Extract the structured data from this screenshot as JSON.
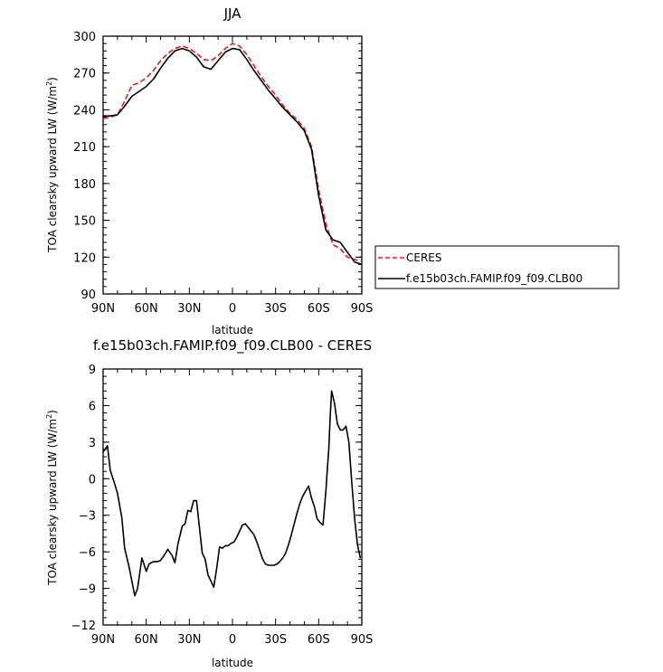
{
  "chart_data": [
    {
      "type": "line",
      "title": "JJA",
      "xlabel": "latitude",
      "ylabel_main": "TOA clearsky upward LW (W/m",
      "ylabel_sup": "2",
      "ylabel_close": ")",
      "xlim": [
        90,
        -90
      ],
      "ylim": [
        90,
        300
      ],
      "x_ticks": [
        90,
        60,
        30,
        0,
        -30,
        -60,
        -90
      ],
      "x_tick_labels": [
        "90N",
        "60N",
        "30N",
        "0",
        "30S",
        "60S",
        "90S"
      ],
      "y_ticks": [
        90,
        120,
        150,
        180,
        210,
        240,
        270,
        300
      ],
      "y_tick_labels": [
        "90",
        "120",
        "150",
        "180",
        "210",
        "240",
        "270",
        "300"
      ],
      "legend": "right, outside plot",
      "series": [
        {
          "name": "CERES",
          "color": "#e31a1c",
          "dash": "dashed",
          "x": [
            90,
            85,
            80,
            75,
            70,
            65,
            60,
            55,
            50,
            45,
            40,
            35,
            30,
            25,
            20,
            15,
            10,
            5,
            0,
            -5,
            -10,
            -15,
            -20,
            -25,
            -30,
            -35,
            -40,
            -45,
            -50,
            -55,
            -60,
            -65,
            -70,
            -75,
            -80,
            -85,
            -90
          ],
          "y": [
            233,
            234,
            236,
            247,
            260,
            262,
            266,
            272,
            280,
            286,
            290,
            292,
            290,
            286,
            281,
            280,
            284,
            290,
            294,
            292,
            285,
            276,
            267,
            259,
            252,
            244,
            237,
            232,
            225,
            210,
            175,
            147,
            130,
            127,
            120,
            118,
            117
          ]
        },
        {
          "name": "f.e15b03ch.FAMIP.f09_f09.CLB00",
          "color": "#000000",
          "dash": "solid",
          "x": [
            90,
            85,
            80,
            75,
            70,
            65,
            60,
            55,
            50,
            45,
            40,
            35,
            30,
            25,
            20,
            15,
            10,
            5,
            0,
            -5,
            -10,
            -15,
            -20,
            -25,
            -30,
            -35,
            -40,
            -45,
            -50,
            -55,
            -60,
            -65,
            -70,
            -75,
            -80,
            -85,
            -90
          ],
          "y": [
            235,
            235,
            236,
            243,
            251,
            255,
            259,
            265,
            274,
            282,
            288,
            290,
            288,
            283,
            275,
            273,
            280,
            287,
            290,
            289,
            281,
            272,
            264,
            256,
            249,
            242,
            236,
            230,
            223,
            208,
            170,
            142,
            134,
            132,
            124,
            116,
            114
          ]
        }
      ]
    },
    {
      "type": "line",
      "title": "f.e15b03ch.FAMIP.f09_f09.CLB00 - CERES",
      "xlabel": "latitude",
      "ylabel_main": "TOA clearsky upward LW (W/m",
      "ylabel_sup": "2",
      "ylabel_close": ")",
      "xlim": [
        90,
        -90
      ],
      "ylim": [
        -12,
        9
      ],
      "x_ticks": [
        90,
        60,
        30,
        0,
        -30,
        -60,
        -90
      ],
      "x_tick_labels": [
        "90N",
        "60N",
        "30N",
        "0",
        "30S",
        "60S",
        "90S"
      ],
      "y_ticks": [
        -12,
        -9,
        -6,
        -3,
        0,
        3,
        6,
        9
      ],
      "y_tick_labels": [
        "−12",
        "−9",
        "−6",
        "−3",
        "0",
        "3",
        "6",
        "9"
      ],
      "series": [
        {
          "name": "difference",
          "color": "#000000",
          "dash": "solid",
          "x": [
            90,
            87,
            85,
            82,
            80,
            77,
            75,
            72,
            70,
            68,
            66,
            63,
            60,
            58,
            55,
            52,
            50,
            47,
            45,
            42,
            40,
            38,
            35,
            33,
            31,
            29,
            27,
            25,
            23,
            21,
            19,
            17,
            15,
            13,
            11,
            9,
            7,
            5,
            3,
            1,
            -1,
            -3,
            -5,
            -7,
            -9,
            -11,
            -13,
            -15,
            -17,
            -19,
            -21,
            -23,
            -25,
            -27,
            -29,
            -31,
            -33,
            -35,
            -37,
            -39,
            -41,
            -43,
            -45,
            -47,
            -49,
            -51,
            -53,
            -55,
            -57,
            -59,
            -61,
            -63,
            -65,
            -66,
            -67,
            -68,
            -69,
            -71,
            -73,
            -75,
            -77,
            -79,
            -81,
            -83,
            -85,
            -87,
            -89
          ],
          "y": [
            2.2,
            2.7,
            0.7,
            -0.4,
            -1.2,
            -3.2,
            -5.7,
            -7.2,
            -8.4,
            -9.6,
            -9.0,
            -6.5,
            -7.6,
            -7.0,
            -6.8,
            -6.8,
            -6.7,
            -6.2,
            -5.8,
            -6.3,
            -6.9,
            -5.4,
            -3.9,
            -3.7,
            -2.6,
            -2.7,
            -1.8,
            -1.8,
            -4.0,
            -6.1,
            -6.6,
            -7.9,
            -8.4,
            -8.9,
            -7.4,
            -5.6,
            -5.7,
            -5.5,
            -5.5,
            -5.3,
            -5.2,
            -4.8,
            -4.3,
            -3.8,
            -3.7,
            -4.0,
            -4.3,
            -4.6,
            -5.2,
            -5.9,
            -6.6,
            -7.0,
            -7.1,
            -7.1,
            -7.1,
            -7.0,
            -6.8,
            -6.5,
            -6.1,
            -5.4,
            -4.6,
            -3.7,
            -2.8,
            -2.0,
            -1.4,
            -1.0,
            -0.6,
            -1.6,
            -2.3,
            -3.3,
            -3.6,
            -3.8,
            -1.0,
            0.8,
            2.4,
            5.0,
            7.2,
            6.2,
            4.5,
            4.0,
            4.0,
            4.3,
            3.0,
            -0.3,
            -3.3,
            -5.4,
            -6.5
          ]
        }
      ]
    }
  ]
}
